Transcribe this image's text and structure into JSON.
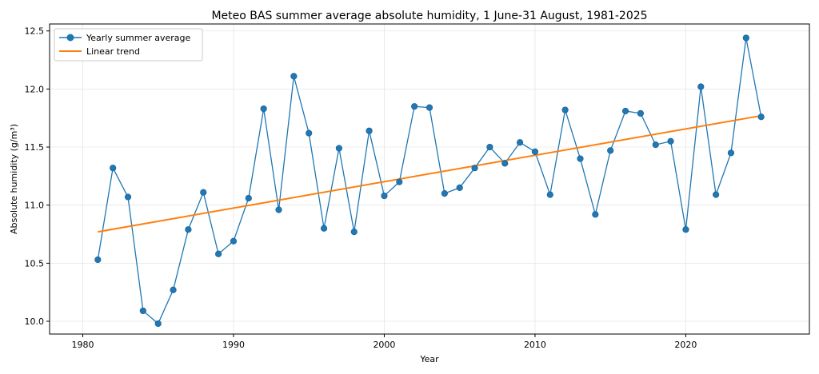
{
  "chart_data": {
    "type": "line",
    "title": "Meteo BAS summer average absolute humidity, 1 June-31 August, 1981-2025",
    "xlabel": "Year",
    "ylabel": "Absolute humidity (g/m³)",
    "xlim": [
      1977.8,
      2028.2
    ],
    "ylim": [
      9.89,
      12.56
    ],
    "xticks": [
      1980,
      1990,
      2000,
      2010,
      2020
    ],
    "yticks": [
      10.0,
      10.5,
      11.0,
      11.5,
      12.0,
      12.5
    ],
    "xtick_labels": [
      "1980",
      "1990",
      "2000",
      "2010",
      "2020"
    ],
    "ytick_labels": [
      "10.0",
      "10.5",
      "11.0",
      "11.5",
      "12.0",
      "12.5"
    ],
    "grid": true,
    "legend_position": "top-left",
    "series": [
      {
        "name": "Yearly summer average",
        "color": "#1f77b4",
        "marker": "circle",
        "x": [
          1981,
          1982,
          1983,
          1984,
          1985,
          1986,
          1987,
          1988,
          1989,
          1990,
          1991,
          1992,
          1993,
          1994,
          1995,
          1996,
          1997,
          1998,
          1999,
          2000,
          2001,
          2002,
          2003,
          2004,
          2005,
          2006,
          2007,
          2008,
          2009,
          2010,
          2011,
          2012,
          2013,
          2014,
          2015,
          2016,
          2017,
          2018,
          2019,
          2020,
          2021,
          2022,
          2023,
          2024,
          2025
        ],
        "y": [
          10.53,
          11.32,
          11.07,
          10.09,
          9.98,
          10.27,
          10.79,
          11.11,
          10.58,
          10.69,
          11.06,
          11.83,
          10.96,
          12.11,
          11.62,
          10.8,
          11.49,
          10.77,
          11.64,
          11.08,
          11.2,
          11.85,
          11.84,
          11.1,
          11.15,
          11.32,
          11.5,
          11.36,
          11.54,
          11.46,
          11.09,
          11.82,
          11.4,
          10.92,
          11.47,
          11.81,
          11.79,
          11.52,
          11.55,
          10.79,
          12.02,
          11.09,
          11.45,
          12.44,
          11.76
        ]
      },
      {
        "name": "Linear trend",
        "color": "#ff7f0e",
        "x": [
          1981,
          2025
        ],
        "y": [
          10.77,
          11.77
        ]
      }
    ]
  }
}
